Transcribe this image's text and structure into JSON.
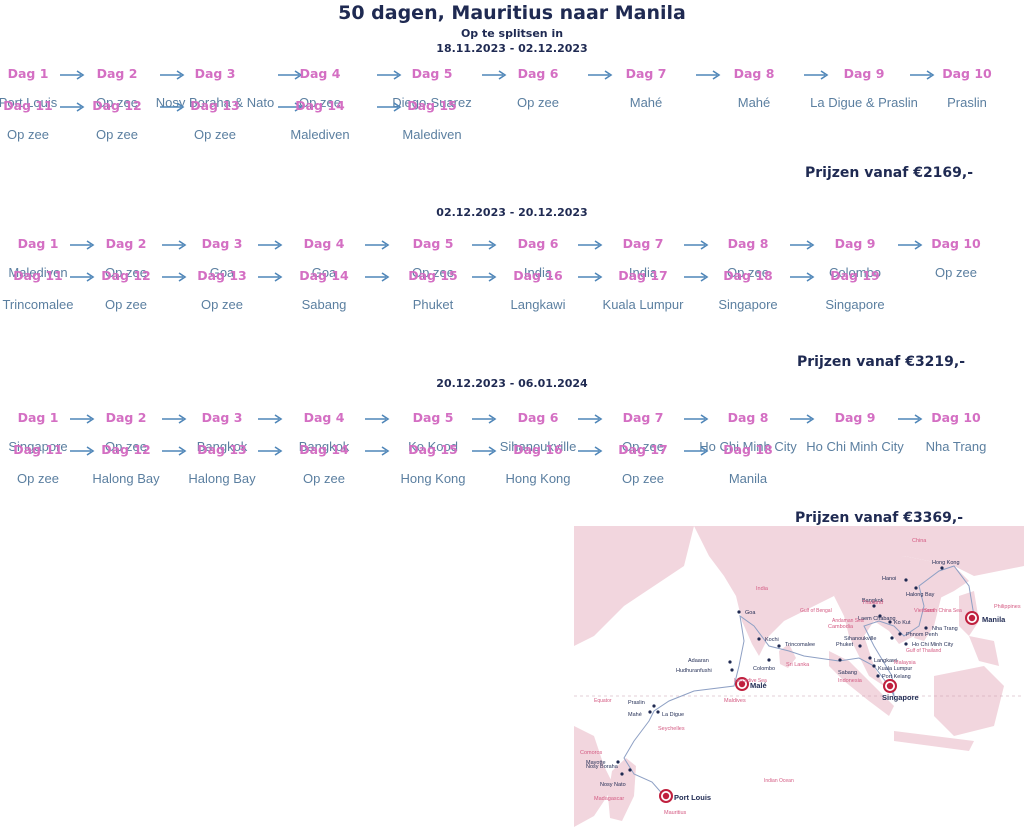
{
  "header": {
    "title": "50 dagen, Mauritius naar Manila",
    "subtitle": "Op te splitsen in"
  },
  "sections": [
    {
      "period": "18.11.2023 - 02.12.2023",
      "price": "Prijzen vanaf €2169,-",
      "rows": [
        [
          {
            "day": "Dag 1",
            "place": "Port Louis"
          },
          {
            "day": "Dag 2",
            "place": "Op zee"
          },
          {
            "day": "Dag 3",
            "place": "Nosy Boraha & Nato"
          },
          {
            "day": "Dag 4",
            "place": "Op zee"
          },
          {
            "day": "Dag 5",
            "place": "Diego-Suarez"
          },
          {
            "day": "Dag 6",
            "place": "Op zee"
          },
          {
            "day": "Dag 7",
            "place": "Mahé"
          },
          {
            "day": "Dag 8",
            "place": "Mahé"
          },
          {
            "day": "Dag 9",
            "place": "La Digue & Praslin"
          },
          {
            "day": "Dag 10",
            "place": "Praslin"
          }
        ],
        [
          {
            "day": "Dag 11",
            "place": "Op zee"
          },
          {
            "day": "Dag 12",
            "place": "Op zee"
          },
          {
            "day": "Dag 13",
            "place": "Op zee"
          },
          {
            "day": "Dag 14",
            "place": "Malediven"
          },
          {
            "day": "Dag 15",
            "place": "Malediven"
          }
        ]
      ]
    },
    {
      "period": "02.12.2023 - 20.12.2023",
      "price": "Prijzen vanaf €3219,-",
      "rows": [
        [
          {
            "day": "Dag 1",
            "place": "Malediven"
          },
          {
            "day": "Dag 2",
            "place": "Op zee"
          },
          {
            "day": "Dag 3",
            "place": "Goa"
          },
          {
            "day": "Dag 4",
            "place": "Goa"
          },
          {
            "day": "Dag 5",
            "place": "Op zee"
          },
          {
            "day": "Dag 6",
            "place": "India"
          },
          {
            "day": "Dag 7",
            "place": "India"
          },
          {
            "day": "Dag 8",
            "place": "Op zee"
          },
          {
            "day": "Dag 9",
            "place": "Colombo"
          },
          {
            "day": "Dag 10",
            "place": "Op zee"
          }
        ],
        [
          {
            "day": "Dag 11",
            "place": "Trincomalee"
          },
          {
            "day": "Dag 12",
            "place": "Op zee"
          },
          {
            "day": "Dag 13",
            "place": "Op zee"
          },
          {
            "day": "Dag 14",
            "place": "Sabang"
          },
          {
            "day": "Dag 15",
            "place": "Phuket"
          },
          {
            "day": "Dag 16",
            "place": "Langkawi"
          },
          {
            "day": "Dag 17",
            "place": "Kuala Lumpur"
          },
          {
            "day": "Dag 18",
            "place": "Singapore"
          },
          {
            "day": "Dag 19",
            "place": "Singapore"
          }
        ]
      ]
    },
    {
      "period": "20.12.2023 - 06.01.2024",
      "price": "Prijzen vanaf €3369,-",
      "rows": [
        [
          {
            "day": "Dag 1",
            "place": "Singapore"
          },
          {
            "day": "Dag 2",
            "place": "Op zee"
          },
          {
            "day": "Dag 3",
            "place": "Bangkok"
          },
          {
            "day": "Dag 4",
            "place": "Bangkok"
          },
          {
            "day": "Dag 5",
            "place": "Ko Kood"
          },
          {
            "day": "Dag 6",
            "place": "Sihanoukville"
          },
          {
            "day": "Dag 7",
            "place": "Op zee"
          },
          {
            "day": "Dag 8",
            "place": "Ho Chi Minh City"
          },
          {
            "day": "Dag 9",
            "place": "Ho Chi Minh City"
          },
          {
            "day": "Dag 10",
            "place": "Nha Trang"
          }
        ],
        [
          {
            "day": "Dag 11",
            "place": "Op zee"
          },
          {
            "day": "Dag 12",
            "place": "Halong Bay"
          },
          {
            "day": "Dag 13",
            "place": "Halong Bay"
          },
          {
            "day": "Dag 14",
            "place": "Op zee"
          },
          {
            "day": "Dag 15",
            "place": "Hong Kong"
          },
          {
            "day": "Dag 16",
            "place": "Hong Kong"
          },
          {
            "day": "Dag 17",
            "place": "Op zee"
          },
          {
            "day": "Dag 18",
            "place": "Manila"
          }
        ]
      ]
    }
  ],
  "map": {
    "ports": [
      {
        "name": "Port Louis",
        "major": true
      },
      {
        "name": "Nosy Nato",
        "major": false
      },
      {
        "name": "Nosy Boraha",
        "major": false
      },
      {
        "name": "Mayotte",
        "major": false
      },
      {
        "name": "Mahé",
        "major": false
      },
      {
        "name": "Praslin",
        "major": false
      },
      {
        "name": "La Digue",
        "major": false
      },
      {
        "name": "Malé",
        "major": true
      },
      {
        "name": "Hudhuranfushi",
        "major": false
      },
      {
        "name": "Adaaran",
        "major": false
      },
      {
        "name": "Goa",
        "major": false
      },
      {
        "name": "Kochi",
        "major": false
      },
      {
        "name": "Colombo",
        "major": false
      },
      {
        "name": "Trincomalee",
        "major": false
      },
      {
        "name": "Sabang",
        "major": false
      },
      {
        "name": "Phuket",
        "major": false
      },
      {
        "name": "Langkawi",
        "major": false
      },
      {
        "name": "Kuala Lumpur",
        "major": false
      },
      {
        "name": "Port Kelang",
        "major": false
      },
      {
        "name": "Singapore",
        "major": true
      },
      {
        "name": "Bangkok",
        "major": false
      },
      {
        "name": "Laem Chabang",
        "major": false
      },
      {
        "name": "Ko Kut",
        "major": false
      },
      {
        "name": "Sihanoukville",
        "major": false
      },
      {
        "name": "Phnom Penh",
        "major": false
      },
      {
        "name": "Ho Chi Minh City",
        "major": false
      },
      {
        "name": "Nha Trang",
        "major": false
      },
      {
        "name": "Hanoi",
        "major": false
      },
      {
        "name": "Halong Bay",
        "major": false
      },
      {
        "name": "Hong Kong",
        "major": false
      },
      {
        "name": "Manila",
        "major": true
      }
    ],
    "regions": [
      "China",
      "India",
      "Philippines",
      "Thailand",
      "Vietnam",
      "Cambodia",
      "Malaysia",
      "Indonesia",
      "Sri Lanka",
      "Maldives",
      "Seychelles",
      "Comoros",
      "Madagascar",
      "Mauritius"
    ],
    "seas": [
      "Gulf of Bengal",
      "Andaman Sea",
      "South China Sea",
      "Gulf of Thailand",
      "Laccadive Sea",
      "Indian Ocean",
      "Equator"
    ],
    "colors": {
      "land": "#f2d6de",
      "sea": "#ffffff",
      "route": "#8ea0c4",
      "port": "#1f2a52",
      "major": "#c0203e",
      "label_region": "#d45a82"
    }
  }
}
